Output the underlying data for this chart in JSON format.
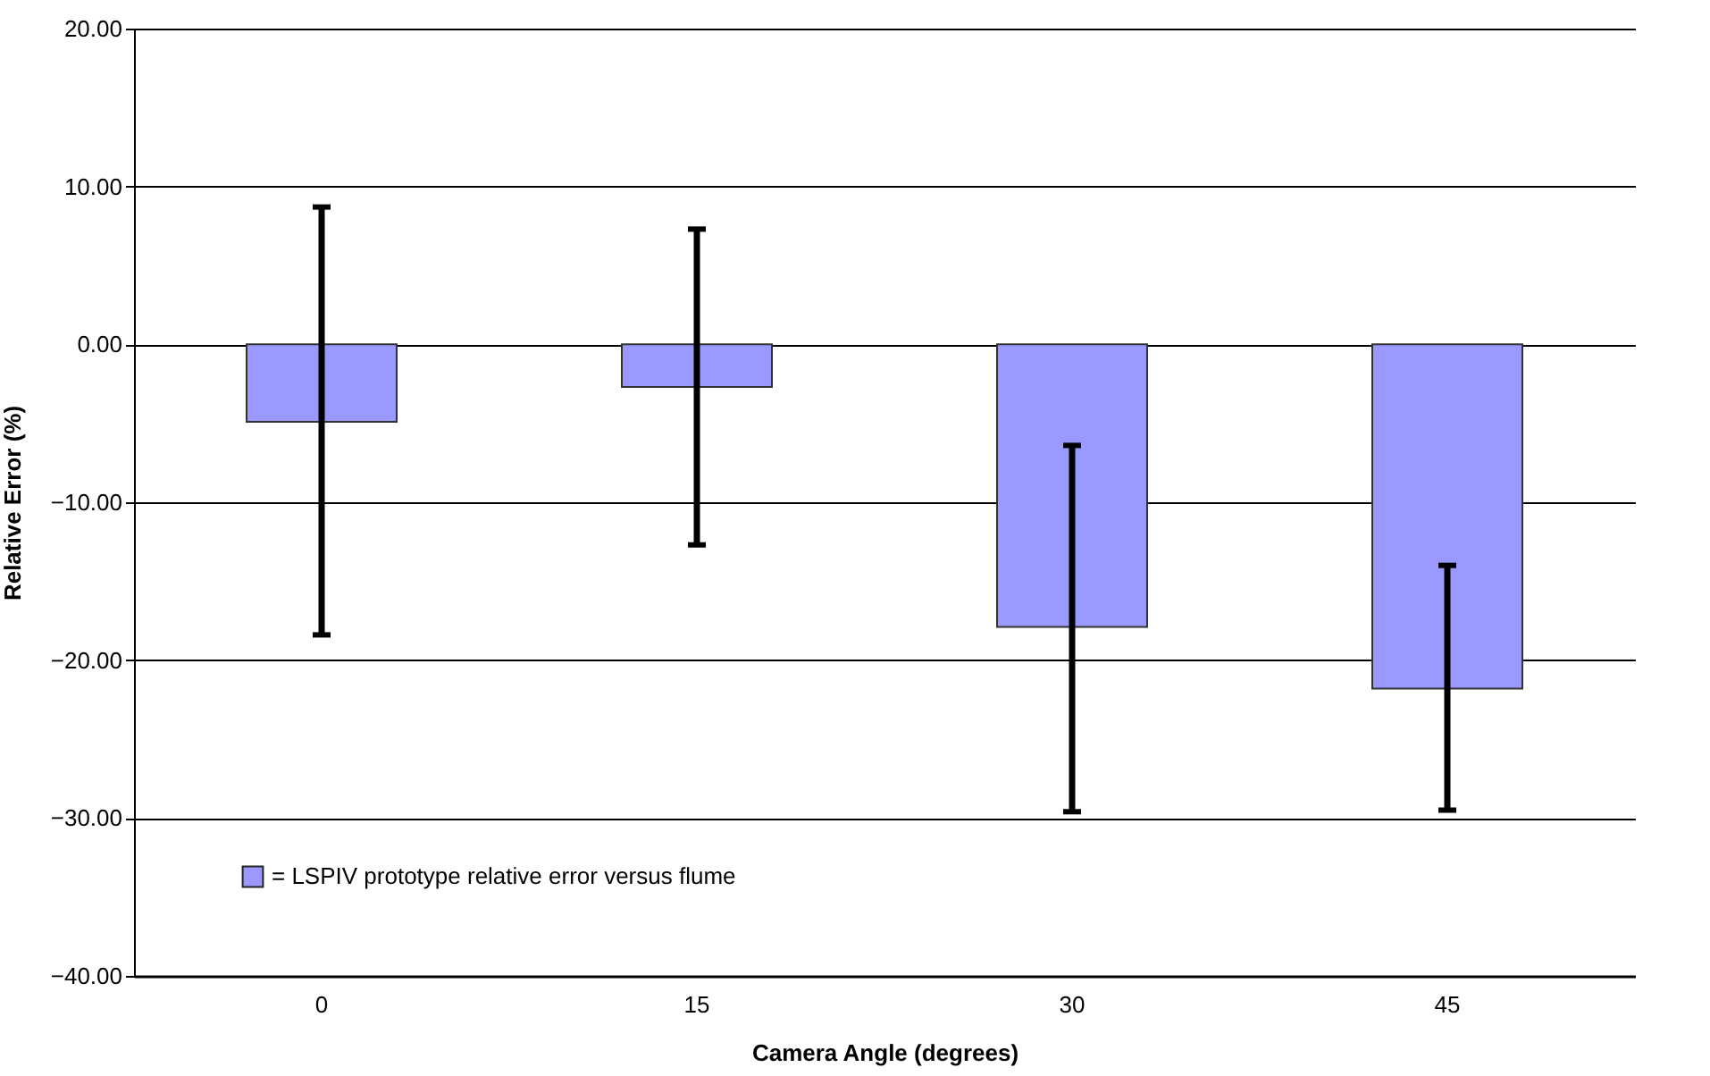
{
  "chart_data": {
    "type": "bar",
    "xlabel": "Camera Angle (degrees)",
    "ylabel": "Relative Error (%)",
    "categories": [
      "0",
      "15",
      "30",
      "45"
    ],
    "series": [
      {
        "name": "= LSPIV prototype relative error versus flume",
        "color": "#9999ff",
        "values": [
          -4.9,
          -2.7,
          -17.9,
          -21.8
        ],
        "errors": [
          [
            -18.4,
            8.7
          ],
          [
            -12.7,
            7.3
          ],
          [
            -29.6,
            -6.4
          ],
          [
            -29.5,
            -14.0
          ]
        ]
      }
    ],
    "ylim": [
      -40,
      20
    ],
    "yticks": [
      {
        "value": -40,
        "label": "−40.00"
      },
      {
        "value": -30,
        "label": "−30.00"
      },
      {
        "value": -20,
        "label": "−20.00"
      },
      {
        "value": -10,
        "label": "−10.00"
      },
      {
        "value": 0,
        "label": "0.00"
      },
      {
        "value": 10,
        "label": "10.00"
      },
      {
        "value": 20,
        "label": "20.00"
      }
    ],
    "grid": "y",
    "legend": "bottom left"
  }
}
